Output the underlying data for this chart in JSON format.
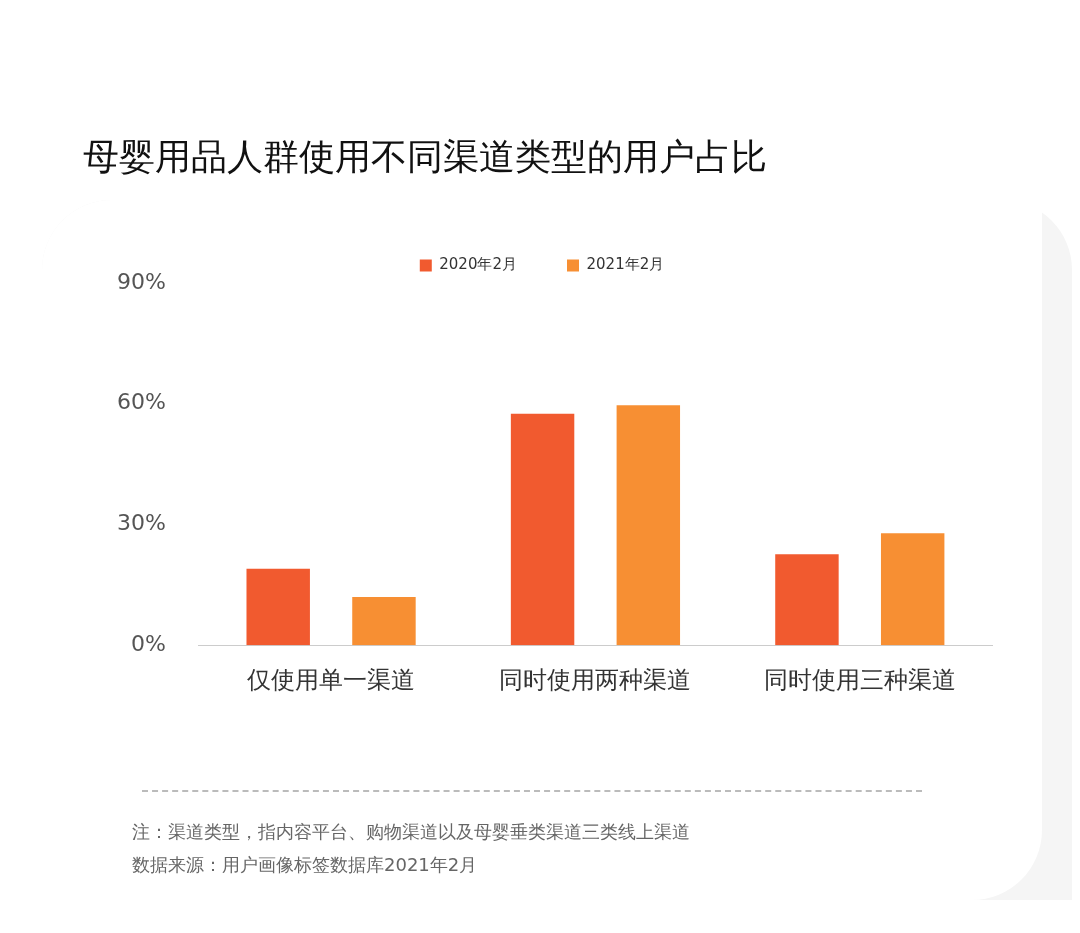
{
  "chart_data": {
    "type": "bar",
    "title": "母婴用品人群使用不同渠道类型的用户占比",
    "categories": [
      "仅使用单一渠道",
      "同时使用两种渠道",
      "同时使用三种渠道"
    ],
    "series": [
      {
        "name": "2020年2月",
        "color": "#f15a2f",
        "values": [
          19,
          57.5,
          22.6
        ]
      },
      {
        "name": "2021年2月",
        "color": "#f78f33",
        "values": [
          12,
          59.6,
          27.8
        ]
      }
    ],
    "ylim": [
      0,
      90
    ],
    "yticks": [
      {
        "value": 0,
        "label": "0%"
      },
      {
        "value": 30,
        "label": "30%"
      },
      {
        "value": 60,
        "label": "60%"
      },
      {
        "value": 90,
        "label": "90%"
      }
    ],
    "grid": false,
    "legend": "top",
    "annotations": [
      "注：渠道类型，指内容平台、购物渠道以及母婴垂类渠道三类线上渠道",
      "数据来源：用户画像标签数据库2021年2月"
    ]
  }
}
